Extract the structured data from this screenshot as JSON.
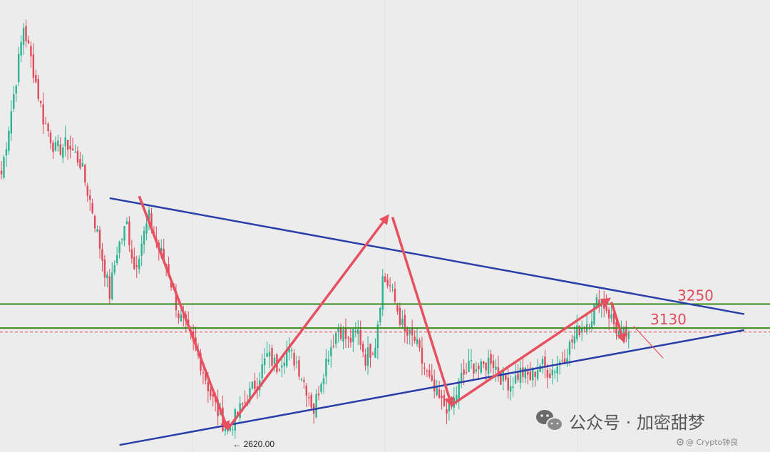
{
  "chart_data": {
    "type": "candlestick",
    "title": "",
    "xlabel": "",
    "ylabel": "",
    "ylim": [
      2560,
      4700
    ],
    "grid": true,
    "colors": {
      "up": "#2bb392",
      "down": "#e04a5a",
      "trendline": "#2a3ea8",
      "level": "#3a8a1c",
      "arrow": "#e8505f",
      "price_line": "#e04a5a"
    },
    "waypoints": [
      {
        "i": 0,
        "p": 3900
      },
      {
        "i": 6,
        "p": 4380
      },
      {
        "i": 9,
        "p": 4640
      },
      {
        "i": 13,
        "p": 4420
      },
      {
        "i": 17,
        "p": 4180
      },
      {
        "i": 22,
        "p": 4020
      },
      {
        "i": 27,
        "p": 4050
      },
      {
        "i": 32,
        "p": 3960
      },
      {
        "i": 37,
        "p": 3720
      },
      {
        "i": 41,
        "p": 3480
      },
      {
        "i": 44,
        "p": 3300
      },
      {
        "i": 47,
        "p": 3520
      },
      {
        "i": 51,
        "p": 3650
      },
      {
        "i": 54,
        "p": 3430
      },
      {
        "i": 57,
        "p": 3560
      },
      {
        "i": 60,
        "p": 3680
      },
      {
        "i": 64,
        "p": 3530
      },
      {
        "i": 68,
        "p": 3410
      },
      {
        "i": 72,
        "p": 3200
      },
      {
        "i": 77,
        "p": 3070
      },
      {
        "i": 81,
        "p": 2960
      },
      {
        "i": 85,
        "p": 2800
      },
      {
        "i": 89,
        "p": 2680
      },
      {
        "i": 92,
        "p": 2620
      },
      {
        "i": 96,
        "p": 2700
      },
      {
        "i": 100,
        "p": 2780
      },
      {
        "i": 104,
        "p": 2870
      },
      {
        "i": 108,
        "p": 2990
      },
      {
        "i": 112,
        "p": 2940
      },
      {
        "i": 116,
        "p": 3020
      },
      {
        "i": 120,
        "p": 2960
      },
      {
        "i": 124,
        "p": 2830
      },
      {
        "i": 127,
        "p": 2720
      },
      {
        "i": 130,
        "p": 2880
      },
      {
        "i": 133,
        "p": 3010
      },
      {
        "i": 137,
        "p": 3140
      },
      {
        "i": 141,
        "p": 3060
      },
      {
        "i": 145,
        "p": 3110
      },
      {
        "i": 148,
        "p": 2980
      },
      {
        "i": 152,
        "p": 3060
      },
      {
        "i": 155,
        "p": 3380
      },
      {
        "i": 158,
        "p": 3340
      },
      {
        "i": 161,
        "p": 3220
      },
      {
        "i": 164,
        "p": 3100
      },
      {
        "i": 168,
        "p": 3070
      },
      {
        "i": 171,
        "p": 2960
      },
      {
        "i": 175,
        "p": 2830
      },
      {
        "i": 179,
        "p": 2750
      },
      {
        "i": 183,
        "p": 2730
      },
      {
        "i": 187,
        "p": 2880
      },
      {
        "i": 191,
        "p": 2950
      },
      {
        "i": 195,
        "p": 2920
      },
      {
        "i": 199,
        "p": 2980
      },
      {
        "i": 203,
        "p": 2890
      },
      {
        "i": 207,
        "p": 2850
      },
      {
        "i": 211,
        "p": 2910
      },
      {
        "i": 215,
        "p": 2880
      },
      {
        "i": 219,
        "p": 2950
      },
      {
        "i": 223,
        "p": 2910
      },
      {
        "i": 227,
        "p": 2960
      },
      {
        "i": 231,
        "p": 3040
      },
      {
        "i": 235,
        "p": 3130
      },
      {
        "i": 239,
        "p": 3170
      },
      {
        "i": 243,
        "p": 3280
      },
      {
        "i": 246,
        "p": 3230
      },
      {
        "i": 249,
        "p": 3150
      },
      {
        "i": 252,
        "p": 3080
      },
      {
        "i": 255,
        "p": 3110
      }
    ],
    "annotations": {
      "levels": [
        {
          "label": "3250",
          "value": 3250
        },
        {
          "label": "3130",
          "value": 3130
        }
      ],
      "current_price": 3110,
      "low_label": "← 2620.00",
      "low_value": 2620,
      "trendlines": [
        {
          "name": "resistance",
          "from": {
            "i": 44,
            "p": 3780
          },
          "to": {
            "i": 302,
            "p": 3200
          }
        },
        {
          "name": "support",
          "from": {
            "i": 48,
            "p": 2545
          },
          "to": {
            "i": 302,
            "p": 3120
          }
        }
      ],
      "arrows": [
        {
          "from": {
            "i": 56,
            "p": 3790
          },
          "to": {
            "i": 92,
            "p": 2625
          },
          "style": "bold"
        },
        {
          "from": {
            "i": 92,
            "p": 2625
          },
          "to": {
            "i": 157,
            "p": 3690
          },
          "style": "bold"
        },
        {
          "from": {
            "i": 159,
            "p": 3685
          },
          "to": {
            "i": 183,
            "p": 2745
          },
          "style": "bold"
        },
        {
          "from": {
            "i": 183,
            "p": 2745
          },
          "to": {
            "i": 247,
            "p": 3275
          },
          "style": "bold"
        },
        {
          "from": {
            "i": 248,
            "p": 3260
          },
          "to": {
            "i": 253,
            "p": 3065
          },
          "style": "bold"
        },
        {
          "from": {
            "i": 257,
            "p": 3140
          },
          "to": {
            "i": 269,
            "p": 2980
          },
          "style": "thin"
        }
      ]
    }
  },
  "watermark": {
    "main": "公众号 · 加密甜梦",
    "sub": "@ Crypto钟良"
  }
}
